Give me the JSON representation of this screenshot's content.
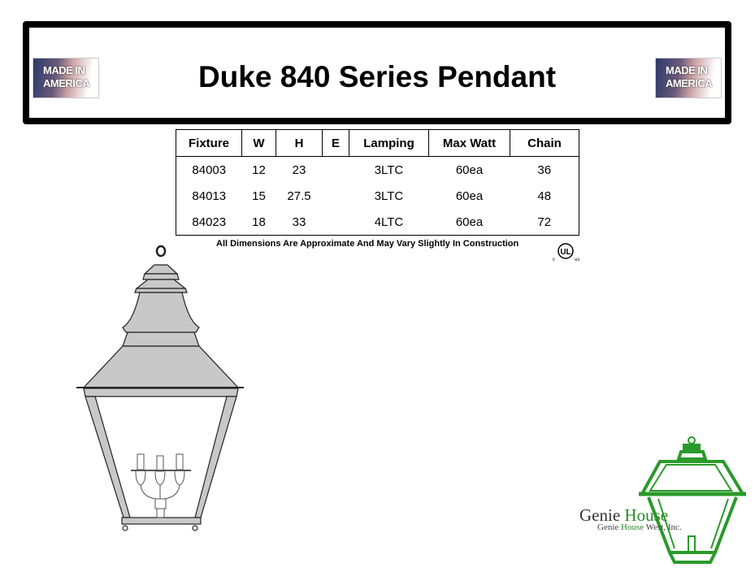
{
  "header": {
    "title": "Duke 840 Series Pendant",
    "badge_text": "MADE IN AMERICA"
  },
  "table": {
    "columns": [
      "Fixture",
      "W",
      "H",
      "E",
      "Lamping",
      "Max Watt",
      "Chain"
    ],
    "rows": [
      [
        "84003",
        "12",
        "23",
        "",
        "3LTC",
        "60ea",
        "36"
      ],
      [
        "84013",
        "15",
        "27.5",
        "",
        "3LTC",
        "60ea",
        "48"
      ],
      [
        "84023",
        "18",
        "33",
        "",
        "4LTC",
        "60ea",
        "72"
      ]
    ]
  },
  "note": "All Dimensions Are Approximate And May Vary Slightly In Construction",
  "certification": {
    "mark": "UL",
    "left": "c",
    "right": "us"
  },
  "brand": {
    "name_dark": "Genie ",
    "name_green": "House",
    "sub_dark1": "Genie ",
    "sub_green": "House",
    "sub_dark2": " West, Inc.",
    "color": "#2a9a2a"
  }
}
